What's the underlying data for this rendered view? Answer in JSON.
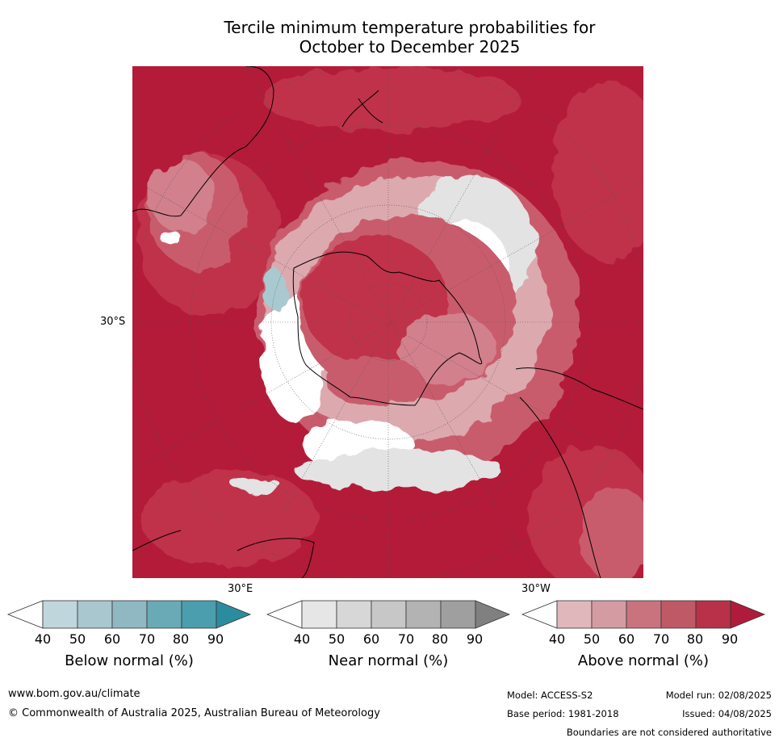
{
  "title": {
    "line1": "Tercile minimum temperature probabilities for",
    "line2": "October to December 2025"
  },
  "map": {
    "projection": "south polar stereographic",
    "labels": {
      "lat_30s": "30°S",
      "lon_30e": "30°E",
      "lon_30w": "30°W"
    },
    "colors": {
      "above_90": "#b31b39",
      "above_80": "#c0304a",
      "above_70": "#c95b6c",
      "above_60": "#d2808c",
      "above_50": "#dca9af",
      "near": "#e3e3e3",
      "below_50": "#a9c9d0",
      "below_70": "#74afbd",
      "white": "#ffffff"
    }
  },
  "colorbars": [
    {
      "label": "Below normal (%)",
      "ticks": [
        "40",
        "50",
        "60",
        "70",
        "80",
        "90"
      ],
      "colors": [
        "#ffffff",
        "#bfd6dc",
        "#a8c7cf",
        "#8fb8c3",
        "#6aaab6",
        "#4a9eae",
        "#2c8c9f"
      ]
    },
    {
      "label": "Near normal (%)",
      "ticks": [
        "40",
        "50",
        "60",
        "70",
        "80",
        "90"
      ],
      "colors": [
        "#ffffff",
        "#e6e6e6",
        "#d7d7d7",
        "#c7c7c7",
        "#b3b3b3",
        "#9f9f9f",
        "#808080"
      ]
    },
    {
      "label": "Above normal (%)",
      "ticks": [
        "40",
        "50",
        "60",
        "70",
        "80",
        "90"
      ],
      "colors": [
        "#ffffff",
        "#e0b8bc",
        "#d49ca2",
        "#c9737f",
        "#c05966",
        "#b83149",
        "#b11b3b"
      ]
    }
  ],
  "footer": {
    "website": "www.bom.gov.au/climate",
    "copyright": "© Commonwealth of Australia 2025, Australian Bureau of Meteorology",
    "model": "Model: ACCESS-S2",
    "model_run": "Model run: 02/08/2025",
    "base_period": "Base period: 1981-2018",
    "issued": "Issued: 04/08/2025",
    "disclaimer": "Boundaries are not considered authoritative"
  }
}
